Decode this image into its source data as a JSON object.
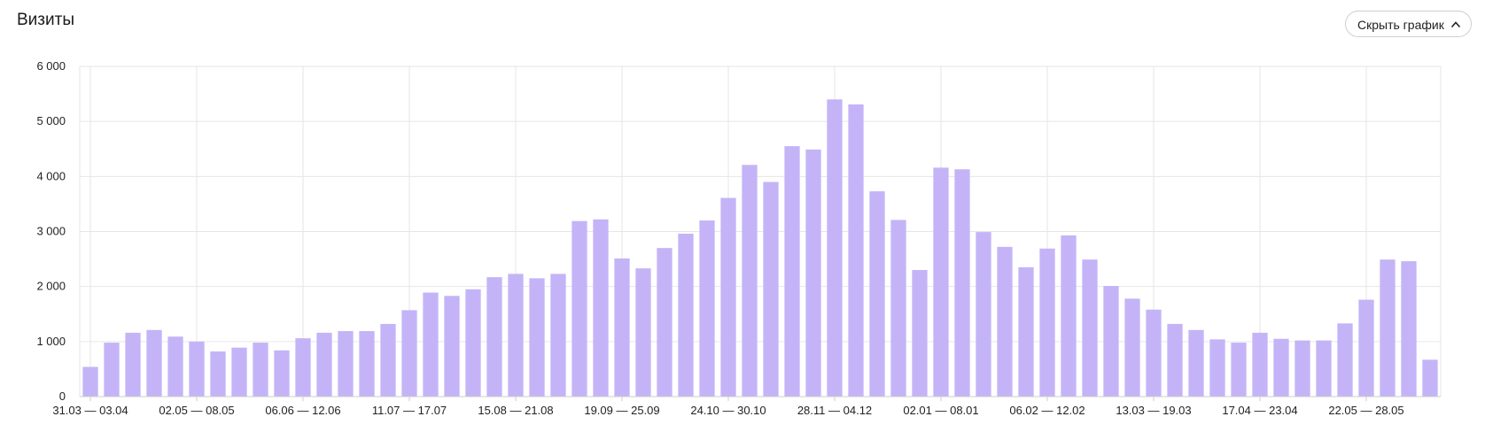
{
  "header": {
    "title": "Визиты",
    "toggle_label": "Скрыть график"
  },
  "colors": {
    "bar": "#c4b4f7",
    "grid": "#e6e6e6",
    "axis": "#cccccc"
  },
  "icons": {
    "toggle": "chevron-up-icon"
  },
  "chart_data": {
    "type": "bar",
    "title": "Визиты",
    "xlabel": "",
    "ylabel": "",
    "ylim": [
      0,
      6000
    ],
    "yticks": [
      {
        "value": 0,
        "label": "0"
      },
      {
        "value": 1000,
        "label": "1 000"
      },
      {
        "value": 2000,
        "label": "2 000"
      },
      {
        "value": 3000,
        "label": "3 000"
      },
      {
        "value": 4000,
        "label": "4 000"
      },
      {
        "value": 5000,
        "label": "5 000"
      },
      {
        "value": 6000,
        "label": "6 000"
      }
    ],
    "xticks": [
      {
        "index": 0,
        "label": "31.03 — 03.04"
      },
      {
        "index": 5,
        "label": "02.05 — 08.05"
      },
      {
        "index": 10,
        "label": "06.06 — 12.06"
      },
      {
        "index": 15,
        "label": "11.07 — 17.07"
      },
      {
        "index": 20,
        "label": "15.08 — 21.08"
      },
      {
        "index": 25,
        "label": "19.09 — 25.09"
      },
      {
        "index": 30,
        "label": "24.10 — 30.10"
      },
      {
        "index": 35,
        "label": "28.11 — 04.12"
      },
      {
        "index": 40,
        "label": "02.01 — 08.01"
      },
      {
        "index": 45,
        "label": "06.02 — 12.02"
      },
      {
        "index": 50,
        "label": "13.03 — 19.03"
      },
      {
        "index": 55,
        "label": "17.04 — 23.04"
      },
      {
        "index": 60,
        "label": "22.05 — 28.05"
      }
    ],
    "grid": true,
    "values": [
      540,
      980,
      1160,
      1210,
      1090,
      1000,
      820,
      890,
      980,
      840,
      1060,
      1160,
      1190,
      1190,
      1320,
      1570,
      1890,
      1830,
      1950,
      2170,
      2230,
      2150,
      2230,
      3190,
      3220,
      2510,
      2330,
      2700,
      2960,
      3200,
      3610,
      4210,
      3900,
      4550,
      4490,
      5400,
      5310,
      3730,
      3210,
      2300,
      4160,
      4130,
      2990,
      2720,
      2350,
      2690,
      2930,
      2490,
      2010,
      1780,
      1580,
      1320,
      1210,
      1040,
      980,
      1160,
      1050,
      1020,
      1020,
      1330,
      1760,
      2490,
      2460,
      670
    ]
  }
}
